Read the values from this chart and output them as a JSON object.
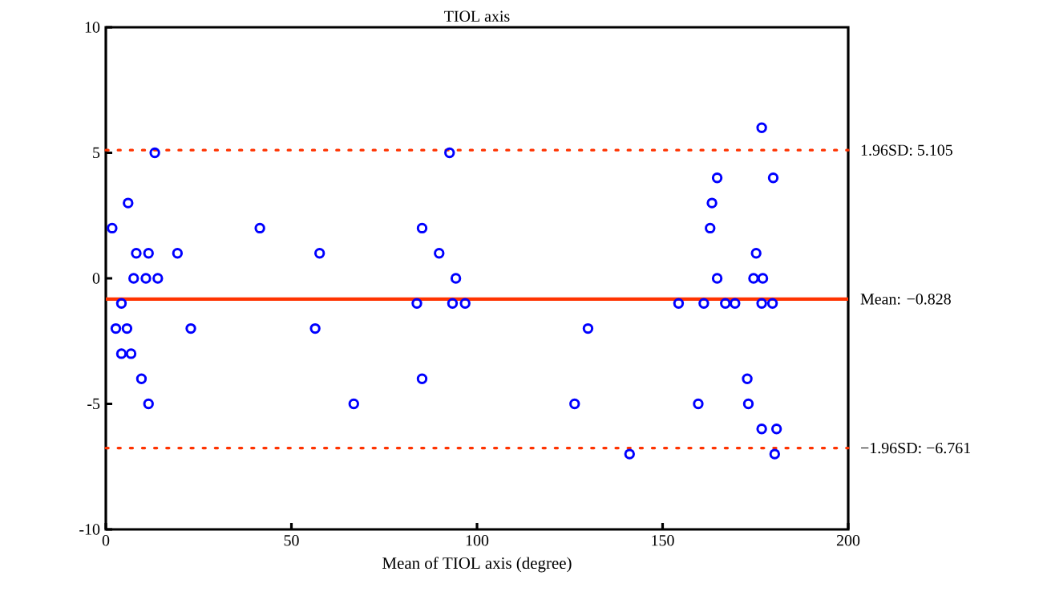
{
  "chart_data": {
    "type": "scatter",
    "title": "TIOL axis",
    "xlabel": "Mean of TIOL axis (degree)",
    "xlim": [
      0,
      200
    ],
    "xticks": [
      0,
      50,
      100,
      150,
      200
    ],
    "ylim": [
      -10,
      10
    ],
    "yticks": [
      -10,
      -5,
      0,
      5,
      10
    ],
    "marker": "circle",
    "grid": false,
    "series": [
      {
        "color": "#0000ff",
        "x": [
          13.2,
          6.0,
          1.7,
          8.2,
          11.5,
          19.3,
          41.5,
          57.6,
          7.5,
          10.8,
          14.0,
          4.2,
          2.7,
          5.7,
          22.9,
          56.4,
          4.2,
          6.8,
          9.6,
          11.5,
          66.8,
          92.6,
          85.2,
          89.8,
          94.3,
          83.8,
          93.4,
          96.8,
          129.9,
          85.2,
          126.3,
          176.7,
          164.7,
          179.8,
          163.3,
          162.8,
          175.2,
          164.7,
          174.5,
          177.0,
          154.3,
          161.1,
          166.9,
          169.5,
          176.7,
          179.6,
          172.8,
          159.6,
          173.1,
          176.7,
          180.7,
          141.1,
          180.2
        ],
        "values": [
          5,
          3,
          2,
          1,
          1,
          1,
          2,
          1,
          0,
          0,
          0,
          -1,
          -2,
          -2,
          -2,
          -2,
          -3,
          -3,
          -4,
          -5,
          -5,
          5,
          2,
          1,
          0,
          -1,
          -1,
          -1,
          -2,
          -4,
          -5,
          6,
          4,
          4,
          3,
          2,
          1,
          0,
          0,
          0,
          -1,
          -1,
          -1,
          -1,
          -1,
          -1,
          -4,
          -5,
          -5,
          -6,
          -6,
          -7,
          -7
        ]
      }
    ],
    "ref_lines": [
      {
        "axis": "y",
        "value": 5.105,
        "label": "1.96SD: 5.105",
        "color": "#ff3300",
        "line_style": "dotted"
      },
      {
        "axis": "y",
        "value": -0.828,
        "label": "Mean: −0.828",
        "color": "#ff3300",
        "line_style": "solid"
      },
      {
        "axis": "y",
        "value": -6.761,
        "label": "−1.96SD: −6.761",
        "color": "#ff3300",
        "line_style": "dotted"
      }
    ]
  }
}
